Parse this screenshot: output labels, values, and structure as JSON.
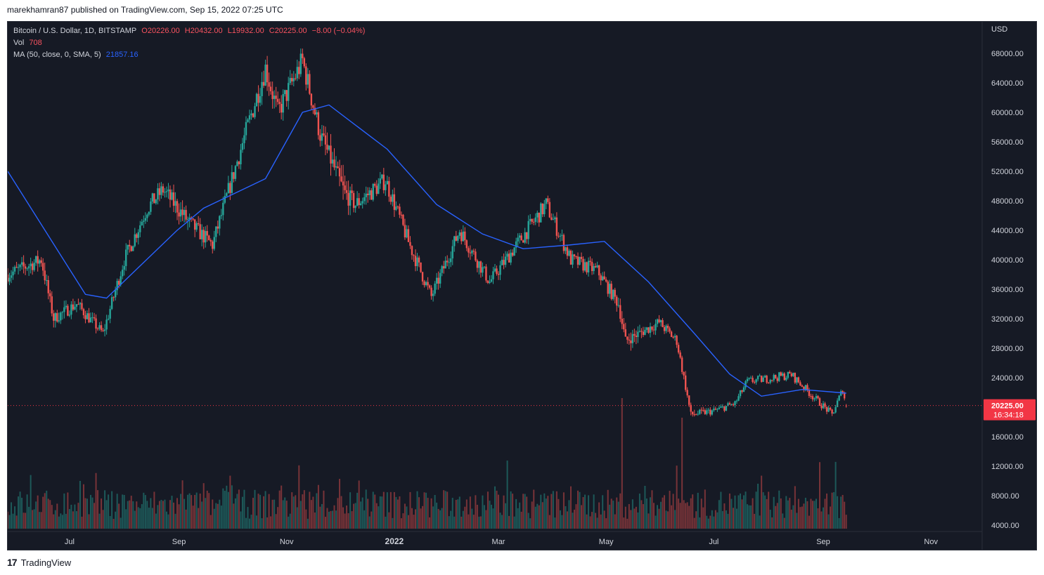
{
  "header": {
    "published": "marekhamran87 published on TradingView.com, Sep 15, 2022 07:25 UTC"
  },
  "legend": {
    "symbol": "Bitcoin / U.S. Dollar, 1D, BITSTAMP",
    "open": "O20226.00",
    "high": "H20432.00",
    "low": "L19932.00",
    "close": "C20225.00",
    "change": "−8.00 (−0.04%)",
    "vol_label": "Vol",
    "vol_value": "708",
    "ma_label": "MA (50, close, 0, SMA, 5)",
    "ma_value": "21857.16"
  },
  "price_axis": {
    "currency": "USD",
    "ticks": [
      "68000.00",
      "64000.00",
      "60000.00",
      "56000.00",
      "52000.00",
      "48000.00",
      "44000.00",
      "40000.00",
      "36000.00",
      "32000.00",
      "28000.00",
      "24000.00",
      "16000.00",
      "12000.00",
      "8000.00",
      "4000.00"
    ],
    "last_price": "20225.00",
    "countdown": "16:34:18"
  },
  "time_axis": {
    "ticks": [
      "Jul",
      "Sep",
      "Nov",
      "2022",
      "Mar",
      "May",
      "Jul",
      "Sep",
      "Nov"
    ]
  },
  "footer": {
    "brand": "TradingView",
    "logo_glyph": "17"
  },
  "colors": {
    "up": "#26a69a",
    "down": "#ef5350",
    "ma": "#2962ff",
    "background": "#161a25",
    "last_price": "#f23645"
  },
  "chart_data": {
    "type": "candlestick",
    "title": "Bitcoin / U.S. Dollar, 1D, BITSTAMP",
    "x_range": [
      "2021-05-27",
      "2022-11-30"
    ],
    "ylim": [
      4000,
      70000
    ],
    "price_anchors": {
      "x": [
        "2021-05-27",
        "2021-06-15",
        "2021-06-22",
        "2021-07-05",
        "2021-07-20",
        "2021-08-01",
        "2021-08-14",
        "2021-08-23",
        "2021-09-07",
        "2021-09-20",
        "2021-10-06",
        "2021-10-20",
        "2021-10-27",
        "2021-11-10",
        "2021-11-20",
        "2021-12-04",
        "2021-12-10",
        "2021-12-27",
        "2022-01-10",
        "2022-01-22",
        "2022-02-07",
        "2022-02-24",
        "2022-03-28",
        "2022-04-11",
        "2022-04-26",
        "2022-05-08",
        "2022-05-12",
        "2022-05-31",
        "2022-06-10",
        "2022-06-18",
        "2022-07-01",
        "2022-07-13",
        "2022-07-20",
        "2022-07-29",
        "2022-08-14",
        "2022-08-26",
        "2022-09-06",
        "2022-09-12",
        "2022-09-14"
      ],
      "close": [
        38000,
        40000,
        32000,
        34000,
        30000,
        40000,
        47000,
        49500,
        45000,
        42000,
        55000,
        66000,
        60000,
        67000,
        57000,
        49000,
        47500,
        50800,
        41800,
        35000,
        44000,
        37000,
        47500,
        40000,
        38500,
        34000,
        29000,
        31500,
        29000,
        19000,
        19500,
        20500,
        23500,
        23800,
        24400,
        21500,
        19000,
        22400,
        20225
      ],
      "range_fraction": [
        0.04,
        0.05,
        0.06,
        0.04,
        0.04,
        0.04,
        0.03,
        0.03,
        0.06,
        0.04,
        0.03,
        0.04,
        0.04,
        0.03,
        0.04,
        0.08,
        0.04,
        0.03,
        0.04,
        0.04,
        0.04,
        0.04,
        0.03,
        0.03,
        0.03,
        0.05,
        0.07,
        0.03,
        0.03,
        0.06,
        0.03,
        0.03,
        0.03,
        0.02,
        0.02,
        0.03,
        0.03,
        0.04,
        0.02
      ]
    },
    "ma": {
      "name": "MA (50, close, 0, SMA, 5)",
      "x": [
        "2021-05-27",
        "2021-07-10",
        "2021-07-22",
        "2021-08-31",
        "2021-09-15",
        "2021-10-20",
        "2021-11-10",
        "2021-11-25",
        "2021-12-28",
        "2022-01-25",
        "2022-02-20",
        "2022-03-15",
        "2022-04-10",
        "2022-04-30",
        "2022-05-25",
        "2022-06-20",
        "2022-07-10",
        "2022-07-28",
        "2022-08-20",
        "2022-09-14"
      ],
      "values": [
        52000,
        35300,
        34800,
        44000,
        47000,
        51000,
        60000,
        61000,
        55000,
        47500,
        43500,
        41500,
        42000,
        42500,
        37000,
        30000,
        24500,
        21500,
        22400,
        21900
      ]
    },
    "volume": {
      "name": "Vol",
      "notable": [
        {
          "x": "2022-05-10",
          "value": 20000
        },
        {
          "x": "2022-06-13",
          "value": 17000
        }
      ]
    },
    "last": {
      "close": 20225,
      "open": 20226,
      "high": 20432,
      "low": 19932
    }
  }
}
